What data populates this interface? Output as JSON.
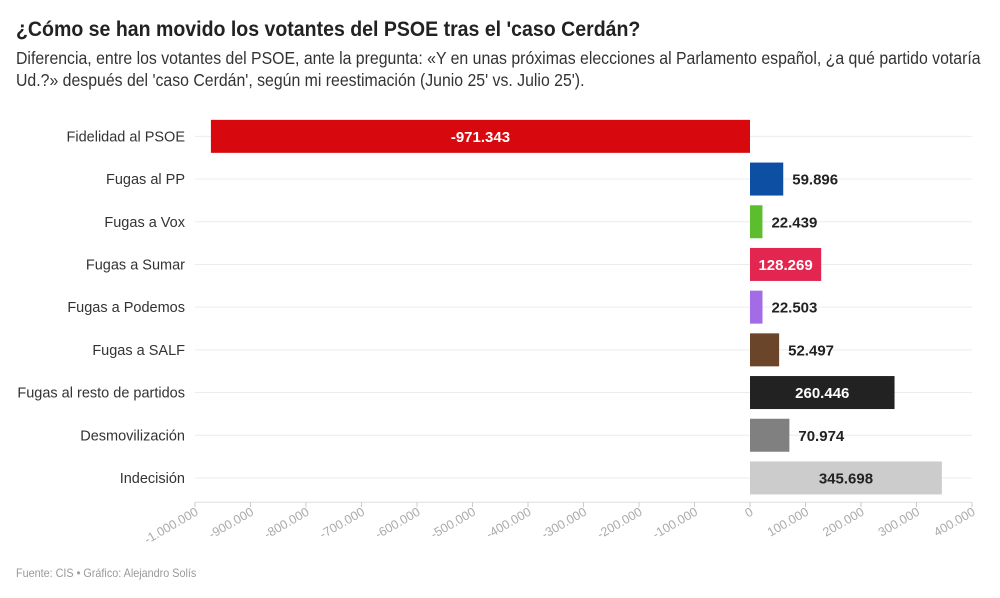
{
  "title": "¿Cómo se han movido los votantes del PSOE tras el 'caso Cerdán?",
  "subtitle": "Diferencia, entre los votantes del PSOE, ante la pregunta: «Y en unas próximas elecciones al Parlamento español, ¿a qué partido votaría Ud.?» después del 'caso Cerdán', según mi reestimación (Junio 25' vs. Julio 25').",
  "footer": "Fuente: CIS • Gráfico: Alejandro Solís",
  "chart_data": {
    "type": "bar",
    "orientation": "horizontal",
    "categories": [
      "Fidelidad al PSOE",
      "Fugas al PP",
      "Fugas a Vox",
      "Fugas a Sumar",
      "Fugas a Podemos",
      "Fugas a SALF",
      "Fugas al resto de partidos",
      "Desmovilización",
      "Indecisión"
    ],
    "values": [
      -971343,
      59896,
      22439,
      128269,
      22503,
      52497,
      260446,
      70974,
      345698
    ],
    "value_labels": [
      "-971.343",
      "59.896",
      "22.439",
      "128.269",
      "22.503",
      "52.497",
      "260.446",
      "70.974",
      "345.698"
    ],
    "colors": [
      "#d7090f",
      "#0d4fa2",
      "#5cbd2e",
      "#e2264f",
      "#a46be6",
      "#6b4529",
      "#222222",
      "#808080",
      "#cccccc"
    ],
    "label_inside": [
      true,
      false,
      false,
      true,
      false,
      false,
      true,
      false,
      true
    ],
    "label_colors": [
      "#ffffff",
      "#222222",
      "#222222",
      "#ffffff",
      "#222222",
      "#222222",
      "#ffffff",
      "#222222",
      "#222222"
    ],
    "xlim": [
      -1000000,
      400000
    ],
    "ticks": [
      -1000000,
      -900000,
      -800000,
      -700000,
      -600000,
      -500000,
      -400000,
      -300000,
      -200000,
      -100000,
      0,
      100000,
      200000,
      300000,
      400000
    ],
    "tick_labels": [
      "-1.000.000",
      "-900.000",
      "-800.000",
      "-700.000",
      "-600.000",
      "-500.000",
      "-400.000",
      "-300.000",
      "-200.000",
      "-100.000",
      "0",
      "100.000",
      "200.000",
      "300.000",
      "400.000"
    ],
    "grid": true,
    "legend": "none"
  }
}
